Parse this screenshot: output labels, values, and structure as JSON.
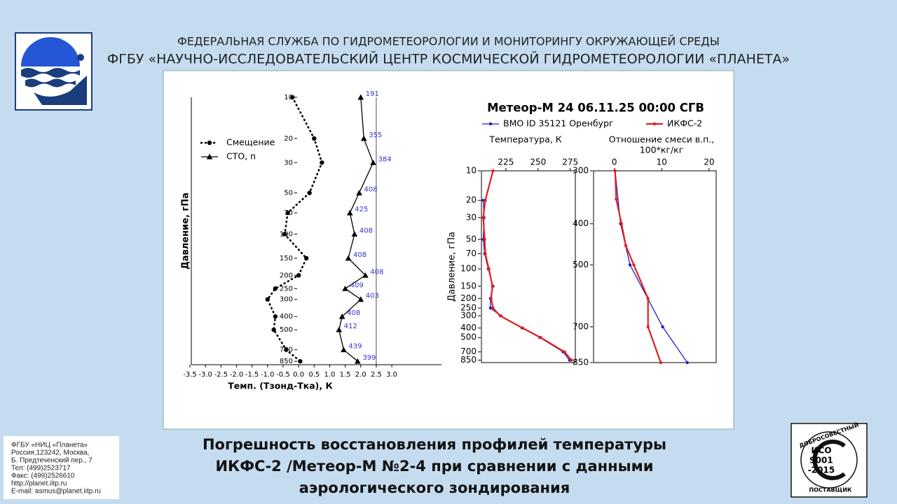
{
  "header": {
    "line1": "ФЕДЕРАЛЬНАЯ СЛУЖБА ПО ГИДРОМЕТЕОРОЛОГИИ И МОНИТОРИНГУ ОКРУЖАЮЩЕЙ СРЕДЫ",
    "line2": "ФГБУ «НАУЧНО-ИССЛЕДОВАТЕЛЬСКИЙ ЦЕНТР КОСМИЧЕСКОЙ ГИДРОМЕТЕОРОЛОГИИ «ПЛАНЕТА»"
  },
  "caption": [
    "Погрешность восстановления профилей температуры",
    "ИКФС-2 /Метеор-М №2-4 при сравнении с данными",
    "аэрологического зондирования"
  ],
  "contacts": [
    "ФГБУ «НИЦ «Планета»",
    "Россия,123242, Москва,",
    "Б. Предтеченский пер., 7",
    "Тел:   (499)2523717",
    "Факс: (499)2526610",
    "http://planet.iitp.ru",
    "E-mail: asmus@planet.iitp.ru"
  ],
  "certificate": {
    "top": "ДОБРОСОВЕСТНЫЙ",
    "lines": [
      "ИСО",
      "9001",
      "-2015"
    ],
    "bottom": "ПОСТАВЩИК"
  },
  "chart_data": [
    {
      "type": "line",
      "ylabel": "Давление, гПа",
      "xlabel": "Темп. (Тзонд-Тка), К",
      "y_scale": "log",
      "y_reversed": true,
      "ylim": [
        10,
        900
      ],
      "yticks": [
        10,
        20,
        30,
        50,
        70,
        100,
        150,
        200,
        250,
        300,
        400,
        500,
        700,
        850
      ],
      "xlim": [
        -3.5,
        4.6
      ],
      "xticks": [
        -3.5,
        {
          "value": -3,
          "label": "-3.0"
        },
        -2.5,
        {
          "value": -2,
          "label": "-2.0"
        },
        -1.5,
        {
          "value": -1,
          "label": "-1.0"
        },
        -0.5,
        {
          "value": 0,
          "label": "0.0"
        },
        0.5,
        {
          "value": 1,
          "label": "1.0"
        },
        1.5,
        {
          "value": 2,
          "label": "2.0"
        },
        2.5,
        {
          "value": 3,
          "label": "3.0"
        }
      ],
      "vline": 2.5,
      "legend": "upper left",
      "y": [
        10,
        20,
        30,
        50,
        70,
        100,
        150,
        200,
        250,
        300,
        400,
        500,
        700,
        850
      ],
      "series": [
        {
          "name": "Смещение",
          "color": "#000000",
          "linestyle": "dotted",
          "marker": "circle",
          "values": [
            -0.2,
            0.5,
            0.75,
            0.35,
            -0.35,
            -0.45,
            0.25,
            0.0,
            -0.75,
            -1.0,
            -0.75,
            -0.8,
            -0.4,
            0.05
          ]
        },
        {
          "name": "СТО, n",
          "color": "#000000",
          "linestyle": "solid",
          "marker": "triangle",
          "values": [
            2.0,
            2.1,
            2.4,
            1.95,
            1.65,
            1.8,
            1.6,
            2.15,
            1.5,
            2.0,
            1.4,
            1.3,
            1.45,
            1.9
          ],
          "counts": [
            191,
            355,
            384,
            408,
            425,
            408,
            408,
            408,
            409,
            403,
            408,
            412,
            439,
            399
          ],
          "counts_color": "#3333cc"
        }
      ]
    },
    {
      "type": "line",
      "title": "Метеор-М 24 06.11.25 00:00 СГВ",
      "ylabel": "Давление, гПа",
      "xlabel": [
        "Температура, К"
      ],
      "y_scale": "log",
      "y_reversed": true,
      "ylim": [
        10,
        900
      ],
      "yticks": [
        10,
        20,
        30,
        50,
        70,
        100,
        150,
        200,
        250,
        300,
        400,
        500,
        700,
        850
      ],
      "xlim": [
        206,
        279
      ],
      "xticks": [
        225,
        250,
        275
      ],
      "legend": "upper center",
      "y": [
        10,
        20,
        30,
        50,
        70,
        100,
        150,
        200,
        250,
        300,
        400,
        500,
        700,
        850
      ],
      "series": [
        {
          "name": "ВМО ID 35121 Оренбург",
          "color": "#1f1fcc",
          "linestyle": "solid",
          "marker": "dot",
          "values": [
            null,
            207.4,
            208,
            207.4,
            208.5,
            211.3,
            215,
            213,
            213,
            221,
            237.6,
            251.4,
            269.5,
            274.5
          ]
        },
        {
          "name": "ИКФС-2",
          "color": "#e02020",
          "linestyle": "thick",
          "marker": "dot",
          "values": [
            215,
            209,
            207.4,
            208.5,
            209,
            211.8,
            214.6,
            213.5,
            215,
            220.5,
            238,
            252,
            270.6,
            276
          ]
        }
      ]
    },
    {
      "type": "line",
      "xlabel": [
        "Отношение смеси в.п.,",
        "100*кг/кг"
      ],
      "y_scale": "log",
      "y_reversed": true,
      "ylim": [
        300,
        850
      ],
      "yticks": [
        300,
        400,
        500,
        700,
        850
      ],
      "xlim": [
        -4.4,
        21.5
      ],
      "xticks": [
        0,
        10,
        20
      ],
      "series": [
        {
          "color": "#1f1fcc",
          "linestyle": "solid",
          "marker": "dot",
          "y": [
            300,
            400,
            500,
            700,
            850
          ],
          "values": [
            0.15,
            1.3,
            3.3,
            10.2,
            15.4
          ]
        },
        {
          "color": "#e02020",
          "linestyle": "thick",
          "marker": "dot",
          "y": [
            300,
            350,
            400,
            450,
            500,
            600,
            700,
            850
          ],
          "values": [
            0.15,
            0.4,
            1.5,
            2.4,
            4.1,
            7.1,
            7.1,
            9.8
          ]
        }
      ]
    }
  ]
}
